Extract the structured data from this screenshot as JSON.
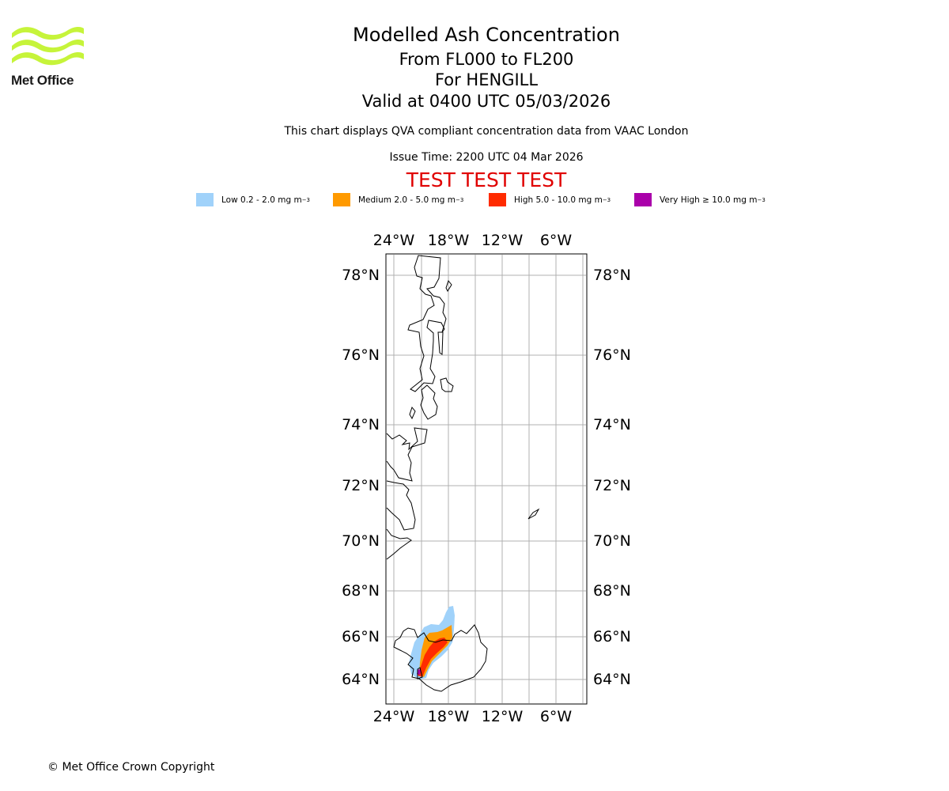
{
  "logo": {
    "name": "Met Office"
  },
  "titles": {
    "main": "Modelled Ash Concentration",
    "levels": "From FL000 to FL200",
    "volcano": "For HENGILL",
    "valid": "Valid at 0400 UTC 05/03/2026",
    "subtitle": "This chart displays QVA compliant concentration data from VAAC London",
    "issue": "Issue Time: 2200 UTC 04 Mar 2026",
    "test_banner": "TEST TEST TEST"
  },
  "legend": [
    {
      "label": "Low 0.2 - 2.0 mg m",
      "color": "#a0d2fa"
    },
    {
      "label": "Medium 2.0 - 5.0 mg m",
      "color": "#ff9a00"
    },
    {
      "label": "High 5.0 - 10.0 mg m",
      "color": "#ff2b00"
    },
    {
      "label": "Very High ≥ 10.0 mg m",
      "color": "#aa00aa"
    }
  ],
  "legend_unit_exp": "−3",
  "map": {
    "lon_labels": [
      "24°W",
      "18°W",
      "12°W",
      "6°W"
    ],
    "lat_labels": [
      "78°N",
      "76°N",
      "74°N",
      "72°N",
      "70°N",
      "68°N",
      "66°N",
      "64°N"
    ]
  },
  "footer": {
    "copyright": "© Met Office Crown Copyright"
  }
}
